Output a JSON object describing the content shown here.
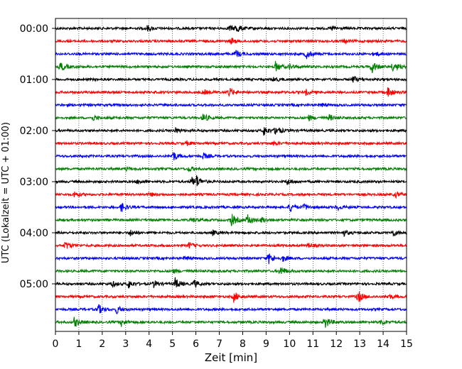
{
  "chart_data": {
    "type": "line",
    "title": "",
    "xlabel": "Zeit  [min]",
    "ylabel": "UTC (Lokalzeit = UTC + 01:00)",
    "xlim": [
      0,
      15
    ],
    "x_ticks": [
      "0",
      "1",
      "2",
      "3",
      "4",
      "5",
      "6",
      "7",
      "8",
      "9",
      "10",
      "11",
      "12",
      "13",
      "14",
      "15"
    ],
    "y_tick_labels": [
      "00:00",
      "01:00",
      "02:00",
      "03:00",
      "04:00",
      "05:00"
    ],
    "grid": "vertical dotted lines at each minute",
    "traces_per_hour": 4,
    "trace_interval_minutes": 15,
    "colors": [
      "#000000",
      "#ff0000",
      "#0000ff",
      "#008000"
    ],
    "traces": [
      {
        "start": "00:00",
        "color": "#000000",
        "events": [
          [
            3.9,
            0.6
          ],
          [
            7.7,
            1.0
          ],
          [
            7.4,
            0.6
          ],
          [
            11.8,
            0.5
          ]
        ]
      },
      {
        "start": "00:15",
        "color": "#ff0000",
        "events": [
          [
            7.5,
            0.6
          ],
          [
            12.3,
            0.4
          ]
        ]
      },
      {
        "start": "00:30",
        "color": "#0000ff",
        "events": [
          [
            7.7,
            0.8
          ],
          [
            10.7,
            1.0
          ],
          [
            13.6,
            0.5
          ]
        ]
      },
      {
        "start": "00:45",
        "color": "#008000",
        "events": [
          [
            0.2,
            1.0
          ],
          [
            9.4,
            1.0
          ],
          [
            13.5,
            1.4
          ],
          [
            14.4,
            1.2
          ],
          [
            10.0,
            0.5
          ]
        ]
      },
      {
        "start": "01:00",
        "color": "#000000",
        "events": [
          [
            12.7,
            0.7
          ],
          [
            9.3,
            0.5
          ]
        ]
      },
      {
        "start": "01:15",
        "color": "#ff0000",
        "events": [
          [
            6.3,
            0.5
          ],
          [
            7.4,
            0.9
          ],
          [
            10.7,
            0.5
          ],
          [
            14.2,
            1.1
          ]
        ]
      },
      {
        "start": "01:30",
        "color": "#0000ff",
        "events": [
          [
            11.3,
            0.4
          ]
        ]
      },
      {
        "start": "01:45",
        "color": "#008000",
        "events": [
          [
            1.6,
            0.5
          ],
          [
            6.3,
            0.9
          ],
          [
            10.8,
            0.6
          ],
          [
            11.7,
            0.6
          ]
        ]
      },
      {
        "start": "02:00",
        "color": "#000000",
        "events": [
          [
            5.1,
            0.6
          ],
          [
            8.9,
            1.0
          ],
          [
            9.4,
            1.0
          ]
        ]
      },
      {
        "start": "02:15",
        "color": "#ff0000",
        "events": [
          [
            5.6,
            0.4
          ],
          [
            9.3,
            0.4
          ]
        ]
      },
      {
        "start": "02:30",
        "color": "#0000ff",
        "events": [
          [
            5.0,
            1.1
          ],
          [
            6.3,
            0.6
          ]
        ]
      },
      {
        "start": "02:45",
        "color": "#008000",
        "events": [
          [
            5.7,
            0.5
          ],
          [
            3.0,
            0.4
          ]
        ]
      },
      {
        "start": "03:00",
        "color": "#000000",
        "events": [
          [
            5.8,
            1.0
          ],
          [
            6.0,
            1.1
          ],
          [
            9.9,
            0.6
          ],
          [
            3.5,
            0.4
          ]
        ]
      },
      {
        "start": "03:15",
        "color": "#ff0000",
        "events": [
          [
            0.8,
            0.6
          ],
          [
            4.0,
            0.4
          ],
          [
            14.5,
            0.6
          ]
        ]
      },
      {
        "start": "03:30",
        "color": "#0000ff",
        "events": [
          [
            2.8,
            1.0
          ],
          [
            10.0,
            1.0
          ],
          [
            10.6,
            0.6
          ],
          [
            12.0,
            0.6
          ]
        ]
      },
      {
        "start": "03:45",
        "color": "#008000",
        "events": [
          [
            7.5,
            1.3
          ],
          [
            8.2,
            1.1
          ],
          [
            8.8,
            0.6
          ],
          [
            5.8,
            0.5
          ]
        ]
      },
      {
        "start": "04:00",
        "color": "#000000",
        "events": [
          [
            3.2,
            0.6
          ],
          [
            6.7,
            0.5
          ],
          [
            12.3,
            0.6
          ],
          [
            14.4,
            0.7
          ]
        ]
      },
      {
        "start": "04:15",
        "color": "#ff0000",
        "events": [
          [
            0.4,
            0.9
          ],
          [
            5.7,
            0.6
          ],
          [
            10.8,
            0.5
          ]
        ]
      },
      {
        "start": "04:30",
        "color": "#0000ff",
        "events": [
          [
            9.1,
            1.2
          ],
          [
            9.7,
            0.6
          ],
          [
            5.5,
            0.4
          ]
        ]
      },
      {
        "start": "04:45",
        "color": "#008000",
        "events": [
          [
            9.6,
            1.0
          ],
          [
            5.0,
            0.4
          ]
        ]
      },
      {
        "start": "05:00",
        "color": "#000000",
        "events": [
          [
            2.4,
            0.6
          ],
          [
            3.1,
            0.9
          ],
          [
            4.2,
            0.7
          ],
          [
            5.1,
            1.2
          ],
          [
            5.9,
            0.8
          ]
        ]
      },
      {
        "start": "05:15",
        "color": "#ff0000",
        "events": [
          [
            7.6,
            1.1
          ],
          [
            12.9,
            1.3
          ],
          [
            14.2,
            0.5
          ]
        ]
      },
      {
        "start": "05:30",
        "color": "#0000ff",
        "events": [
          [
            1.8,
            1.1
          ],
          [
            2.6,
            0.8
          ]
        ]
      },
      {
        "start": "05:45",
        "color": "#008000",
        "events": [
          [
            0.8,
            1.0
          ],
          [
            2.8,
            0.8
          ],
          [
            11.5,
            1.3
          ],
          [
            13.9,
            0.6
          ]
        ]
      }
    ]
  }
}
